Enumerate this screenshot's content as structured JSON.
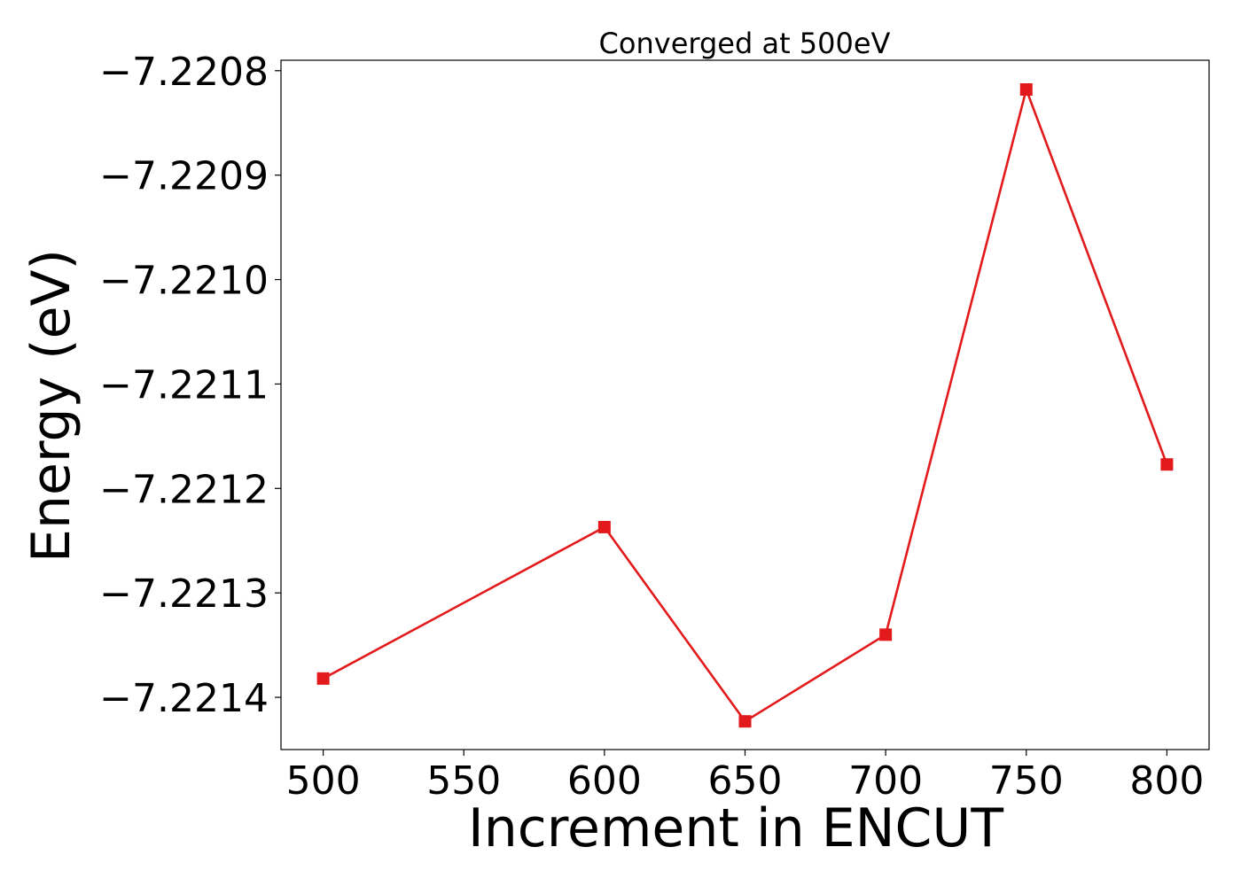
{
  "chart_data": {
    "type": "line",
    "title": "Converged at 500eV",
    "xlabel": "Increment in ENCUT",
    "ylabel": "Energy (eV)",
    "xlim": [
      485,
      815
    ],
    "ylim": [
      -7.22145,
      -7.22079
    ],
    "x_ticks": [
      500,
      550,
      600,
      650,
      700,
      750,
      800
    ],
    "y_ticks": [
      -7.2214,
      -7.2213,
      -7.2212,
      -7.2211,
      -7.221,
      -7.2209,
      -7.2208
    ],
    "y_tick_labels": [
      "−7.2214",
      "−7.2213",
      "−7.2212",
      "−7.2211",
      "−7.2210",
      "−7.2209",
      "−7.2208"
    ],
    "grid": false,
    "series": [
      {
        "color": "#e31a1c",
        "marker": "square",
        "x": [
          500,
          600,
          650,
          700,
          750,
          800
        ],
        "y": [
          -7.221382,
          -7.221237,
          -7.221423,
          -7.22134,
          -7.220818,
          -7.221177
        ]
      }
    ]
  }
}
